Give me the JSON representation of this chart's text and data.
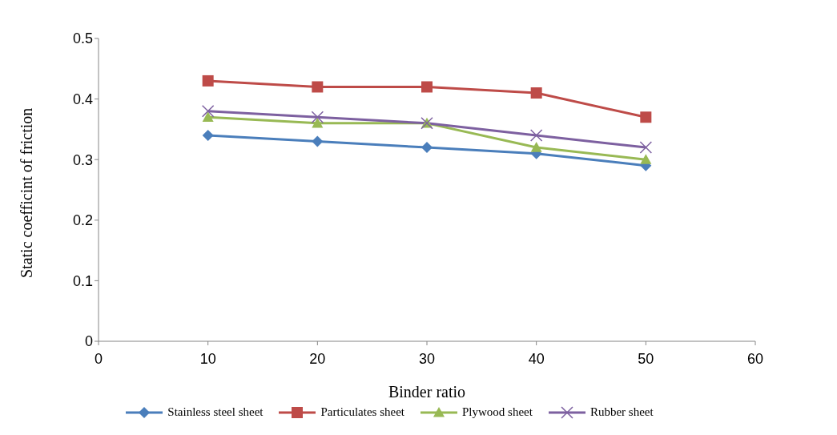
{
  "chart_data": {
    "type": "line",
    "xlabel": "Binder ratio",
    "ylabel": "Static coefficint of friction",
    "x": [
      10,
      20,
      30,
      40,
      50
    ],
    "series": [
      {
        "name": "Stainless steel sheet",
        "color": "#4a7ebb",
        "marker": "diamond",
        "values": [
          0.34,
          0.33,
          0.32,
          0.31,
          0.29
        ]
      },
      {
        "name": "Particulates sheet",
        "color": "#be4b48",
        "marker": "square",
        "values": [
          0.43,
          0.42,
          0.42,
          0.41,
          0.37
        ]
      },
      {
        "name": "Plywood sheet",
        "color": "#98b954",
        "marker": "triangle",
        "values": [
          0.37,
          0.36,
          0.36,
          0.32,
          0.3
        ]
      },
      {
        "name": "Rubber sheet",
        "color": "#7d60a0",
        "marker": "cross",
        "values": [
          0.38,
          0.37,
          0.36,
          0.34,
          0.32
        ]
      }
    ],
    "xlim": [
      0,
      60
    ],
    "xticks": [
      0,
      10,
      20,
      30,
      40,
      50,
      60
    ],
    "ylim": [
      0,
      0.5
    ],
    "yticks": [
      0,
      0.1,
      0.2,
      0.3,
      0.4,
      0.5
    ],
    "grid": false,
    "legend": "bottom",
    "line_style": "solid"
  }
}
